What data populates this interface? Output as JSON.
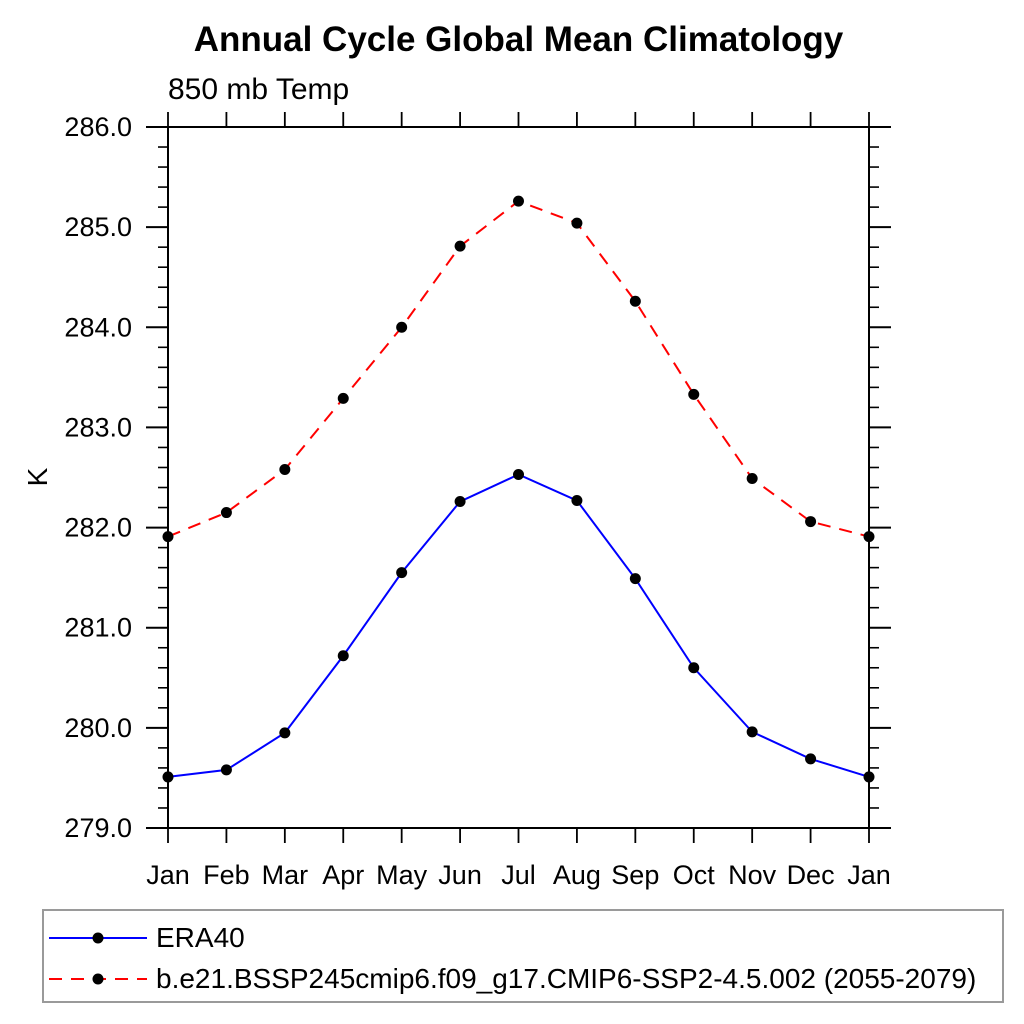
{
  "chart_data": {
    "type": "line",
    "title": "Annual Cycle Global Mean Climatology",
    "subtitle": "850 mb Temp",
    "ylabel": "K",
    "x_tick_labels": [
      "Jan",
      "Feb",
      "Mar",
      "Apr",
      "May",
      "Jun",
      "Jul",
      "Aug",
      "Sep",
      "Oct",
      "Nov",
      "Dec",
      "Jan"
    ],
    "ylim": [
      279.0,
      286.0
    ],
    "y_major_step": 1.0,
    "y_minor_step": 0.2,
    "y_tick_format_decimals": 1,
    "grid": false,
    "legend_position": "bottom-box",
    "axis_color": "#000000",
    "marker_shape": "filled-circle",
    "series": [
      {
        "name": "ERA40",
        "color": "#0000ff",
        "line_style": "solid",
        "marker_color": "#000000",
        "values": [
          279.51,
          279.58,
          279.95,
          280.72,
          281.55,
          282.26,
          282.53,
          282.27,
          281.49,
          280.6,
          279.96,
          279.69,
          279.51
        ]
      },
      {
        "name": "b.e21.BSSP245cmip6.f09_g17.CMIP6-SSP2-4.5.002 (2055-2079)",
        "color": "#ff0000",
        "line_style": "dashed",
        "marker_color": "#000000",
        "values": [
          281.91,
          282.15,
          282.58,
          283.29,
          284.0,
          284.81,
          285.26,
          285.04,
          284.26,
          283.33,
          282.49,
          282.06,
          281.91
        ]
      }
    ]
  }
}
